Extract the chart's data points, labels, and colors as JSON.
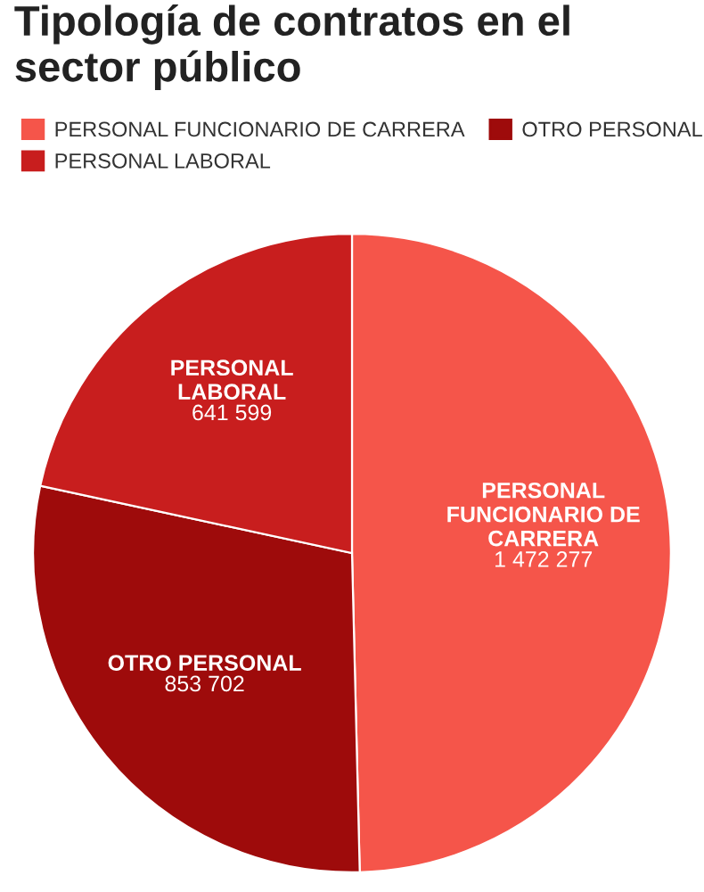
{
  "chart_data": {
    "type": "pie",
    "title": "Tipología de contratos en el sector público",
    "categories": [
      "PERSONAL FUNCIONARIO DE CARRERA",
      "OTRO PERSONAL",
      "PERSONAL LABORAL"
    ],
    "values": [
      1472277,
      853702,
      641599
    ],
    "colors": [
      "#f5554a",
      "#9e0b0b",
      "#c81e1e"
    ],
    "value_labels": [
      "1 472 277",
      "853 702",
      "641 599"
    ],
    "legend": "top left"
  }
}
